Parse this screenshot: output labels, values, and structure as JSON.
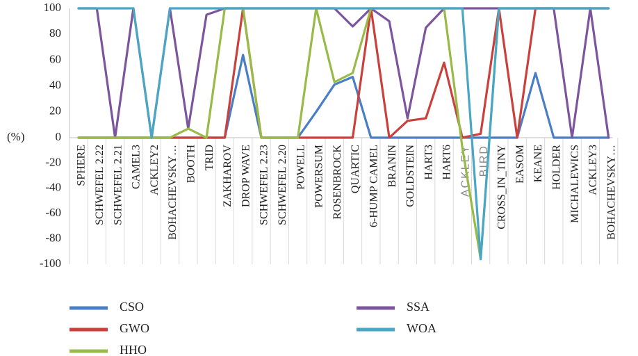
{
  "chart_data": {
    "type": "line",
    "title": "",
    "xlabel": "",
    "ylabel": "(%)",
    "ylim": [
      -100,
      100
    ],
    "yticks": [
      100,
      80,
      60,
      40,
      20,
      0,
      -20,
      -40,
      -60,
      -80,
      -100
    ],
    "grid": false,
    "legend_position": "bottom",
    "categories": [
      "SPHERE",
      "SCHWEFEL 2.22",
      "SCHWEFEL 2.21",
      "CAMEL3",
      "ACKLEY2",
      "BOHACHEVSKY…",
      "BOOTH",
      "TRID",
      "ZAKHAROV",
      "DROP WAVE",
      "SCHWEFEL 2.23",
      "SCHWEFEL 2.20",
      "POWELL",
      "POWERSUM",
      "ROSENBROCK",
      "QUARTIC",
      "6-HUMP CAMEL",
      "BRANIN",
      "GOLDSTEIN",
      "HART3",
      "HART6",
      "ACKLEY",
      "BIRD",
      "CROSS_IN_TINY",
      "EASOM",
      "KEANE",
      "HOLDER",
      "MICHALEWICS",
      "ACKLEY3",
      "BOHACHEVSKY…"
    ],
    "series": [
      {
        "name": "CSO",
        "color": "#4a7ec4",
        "values": [
          0,
          0,
          0,
          0,
          0,
          0,
          0,
          0,
          0,
          64,
          0,
          0,
          0,
          20,
          41,
          47,
          0,
          0,
          0,
          0,
          0,
          0,
          0,
          0,
          0,
          50,
          0,
          0,
          0,
          0
        ]
      },
      {
        "name": "GWO",
        "color": "#c9403c",
        "values": [
          0,
          0,
          0,
          0,
          0,
          0,
          0,
          0,
          0,
          100,
          0,
          0,
          0,
          0,
          0,
          0,
          100,
          0,
          13,
          15,
          58,
          0,
          3,
          100,
          0,
          100,
          100,
          100,
          100,
          100
        ]
      },
      {
        "name": "HHO",
        "color": "#97bb46",
        "values": [
          0,
          0,
          0,
          0,
          0,
          0,
          7,
          0,
          100,
          100,
          0,
          0,
          0,
          100,
          43,
          50,
          100,
          100,
          100,
          100,
          100,
          -8,
          -96,
          100,
          100,
          100,
          100,
          100,
          100,
          100
        ]
      },
      {
        "name": "SSA",
        "color": "#7d549e",
        "values": [
          100,
          100,
          0,
          100,
          0,
          100,
          7,
          95,
          100,
          100,
          100,
          100,
          100,
          100,
          100,
          86,
          100,
          90,
          15,
          85,
          100,
          100,
          100,
          100,
          100,
          100,
          100,
          0,
          100,
          0
        ]
      },
      {
        "name": "WOA",
        "color": "#49a6c4",
        "values": [
          100,
          100,
          100,
          100,
          0,
          100,
          100,
          100,
          100,
          100,
          100,
          100,
          100,
          100,
          100,
          100,
          100,
          100,
          100,
          100,
          100,
          100,
          -96,
          100,
          100,
          100,
          100,
          100,
          100,
          100
        ]
      }
    ]
  }
}
